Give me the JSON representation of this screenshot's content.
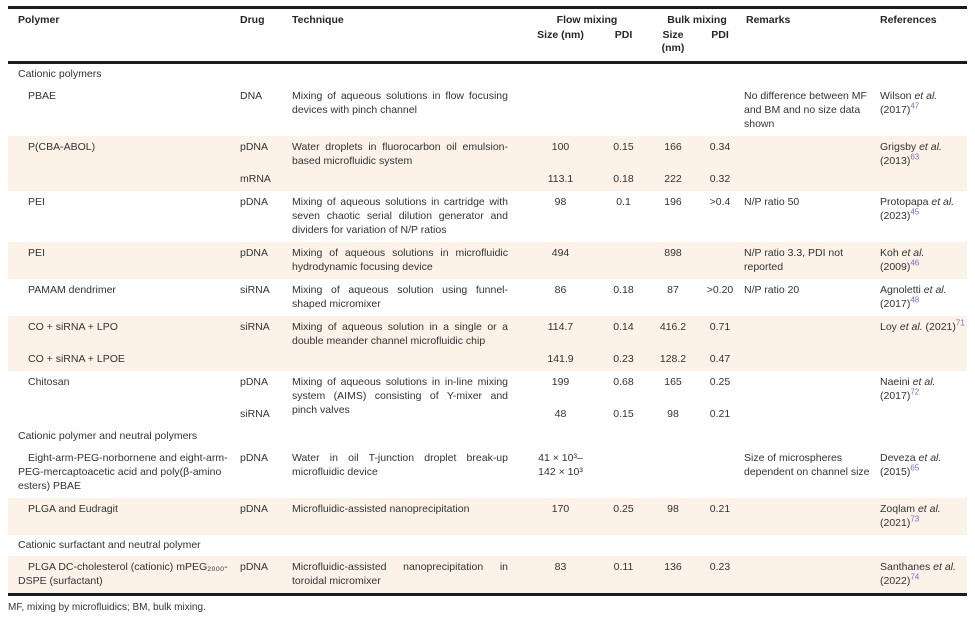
{
  "table": {
    "header": {
      "polymer": "Polymer",
      "drug": "Drug",
      "technique": "Technique",
      "flow_mixing": "Flow mixing",
      "bulk_mixing": "Bulk mixing",
      "flow_size": "Size (nm)",
      "flow_pdi": "PDI",
      "bulk_size": "Size (nm)",
      "bulk_pdi": "PDI",
      "remarks": "Remarks",
      "references": "References"
    },
    "accent_colors": {
      "row_shade": "#fcf2e8",
      "citation_link": "#7b6ec6",
      "rule": "#1c1c1c"
    },
    "rows": [
      {
        "type": "section",
        "label": "Cationic polymers"
      },
      {
        "type": "data",
        "polymer": "PBAE",
        "entries": [
          {
            "drug": "DNA",
            "flow_size": "",
            "flow_pdi": "",
            "bulk_size": "",
            "bulk_pdi": ""
          }
        ],
        "technique": "Mixing of aqueous solutions in flow focusing devices with pinch channel",
        "remarks": "No difference between MF and BM and no size data shown",
        "reference": {
          "authors": "Wilson",
          "etal": "et al.",
          "year": "(2017)",
          "sup": "47"
        }
      },
      {
        "type": "data",
        "polymer": "P(CBA-ABOL)",
        "entries": [
          {
            "drug": "pDNA",
            "flow_size": "100",
            "flow_pdi": "0.15",
            "bulk_size": "166",
            "bulk_pdi": "0.34"
          },
          {
            "drug": "mRNA",
            "flow_size": "113.1",
            "flow_pdi": "0.18",
            "bulk_size": "222",
            "bulk_pdi": "0.32"
          }
        ],
        "technique": "Water droplets in fluorocarbon oil emulsion-based microfluidic system",
        "remarks": "",
        "reference": {
          "authors": "Grigsby",
          "etal": "et al.",
          "year": "(2013)",
          "sup": "63"
        }
      },
      {
        "type": "data",
        "polymer": "PEI",
        "entries": [
          {
            "drug": "pDNA",
            "flow_size": "98",
            "flow_pdi": "0.1",
            "bulk_size": "196",
            "bulk_pdi": ">0.4"
          }
        ],
        "technique": "Mixing of aqueous solutions in cartridge with seven chaotic serial dilution generator and dividers for variation of N/P ratios",
        "remarks": "N/P ratio 50",
        "reference": {
          "authors": "Protopapa",
          "etal": "et al.",
          "year": "(2023)",
          "sup": "45"
        }
      },
      {
        "type": "data",
        "polymer": "PEI",
        "entries": [
          {
            "drug": "pDNA",
            "flow_size": "494",
            "flow_pdi": "",
            "bulk_size": "898",
            "bulk_pdi": ""
          }
        ],
        "technique": "Mixing of aqueous solutions in microfluidic hydrodynamic focusing device",
        "remarks": "N/P ratio 3.3, PDI not reported",
        "reference": {
          "authors": "Koh",
          "etal": "et al.",
          "year": "(2009)",
          "sup": "46"
        }
      },
      {
        "type": "data",
        "polymer": "PAMAM dendrimer",
        "entries": [
          {
            "drug": "siRNA",
            "flow_size": "86",
            "flow_pdi": "0.18",
            "bulk_size": "87",
            "bulk_pdi": ">0.20"
          }
        ],
        "technique": "Mixing of aqueous solution using funnel-shaped micromixer",
        "remarks": "N/P ratio 20",
        "reference": {
          "authors": "Agnoletti",
          "etal": "et al.",
          "year": "(2017)",
          "sup": "48"
        }
      },
      {
        "type": "data",
        "polymer_lines": [
          "CO + siRNA + LPO",
          "CO + siRNA + LPOE"
        ],
        "entries": [
          {
            "drug": "siRNA",
            "flow_size": "114.7",
            "flow_pdi": "0.14",
            "bulk_size": "416.2",
            "bulk_pdi": "0.71"
          },
          {
            "drug": "",
            "flow_size": "141.9",
            "flow_pdi": "0.23",
            "bulk_size": "128.2",
            "bulk_pdi": "0.47"
          }
        ],
        "technique": "Mixing of aqueous solution in a single or a double meander channel microfluidic chip",
        "remarks": "",
        "reference": {
          "authors": "Loy",
          "etal": "et al.",
          "year": "(2021)",
          "sup": "71"
        }
      },
      {
        "type": "data",
        "polymer": "Chitosan",
        "entries": [
          {
            "drug": "pDNA",
            "flow_size": "199",
            "flow_pdi": "0.68",
            "bulk_size": "165",
            "bulk_pdi": "0.25"
          },
          {
            "drug": "siRNA",
            "flow_size": "48",
            "flow_pdi": "0.15",
            "bulk_size": "98",
            "bulk_pdi": "0.21"
          }
        ],
        "technique": "Mixing of aqueous solutions in in-line mixing system (AIMS) consisting of Y-mixer and pinch valves",
        "remarks": "",
        "reference": {
          "authors": "Naeini",
          "etal": "et al.",
          "year": "(2017)",
          "sup": "72"
        }
      },
      {
        "type": "section",
        "label": "Cationic polymer and neutral polymers"
      },
      {
        "type": "data",
        "polymer": "Eight-arm-PEG-norbornene and eight-arm-PEG-mercaptoacetic acid and poly(β-amino esters) PBAE",
        "entries": [
          {
            "drug": "pDNA",
            "flow_size": "41 × 10³–\n142 × 10³",
            "flow_pdi": "",
            "bulk_size": "",
            "bulk_pdi": ""
          }
        ],
        "technique": "Water in oil T-junction droplet break-up microfluidic device",
        "remarks": "Size of microspheres dependent on channel size",
        "reference": {
          "authors": "Deveza",
          "etal": "et al.",
          "year": "(2015)",
          "sup": "65"
        }
      },
      {
        "type": "data",
        "polymer": "PLGA and Eudragit",
        "entries": [
          {
            "drug": "pDNA",
            "flow_size": "170",
            "flow_pdi": "0.25",
            "bulk_size": "98",
            "bulk_pdi": "0.21"
          }
        ],
        "technique": "Microfluidic-assisted nanoprecipitation",
        "remarks": "",
        "reference": {
          "authors": "Zoqlam",
          "etal": "et al.",
          "year": "(2021)",
          "sup": "73"
        }
      },
      {
        "type": "section",
        "label": "Cationic surfactant and neutral polymer"
      },
      {
        "type": "data",
        "polymer": "PLGA DC-cholesterol (cationic) mPEG₂₀₀₀-DSPE (surfactant)",
        "entries": [
          {
            "drug": "pDNA",
            "flow_size": "83",
            "flow_pdi": "0.11",
            "bulk_size": "136",
            "bulk_pdi": "0.23"
          }
        ],
        "technique": "Microfluidic-assisted nanoprecipitation in toroidal micromixer",
        "remarks": "",
        "reference": {
          "authors": "Santhanes",
          "etal": "et al.",
          "year": "(2022)",
          "sup": "74"
        }
      }
    ],
    "footnote": "MF, mixing by microfluidics; BM, bulk mixing."
  }
}
